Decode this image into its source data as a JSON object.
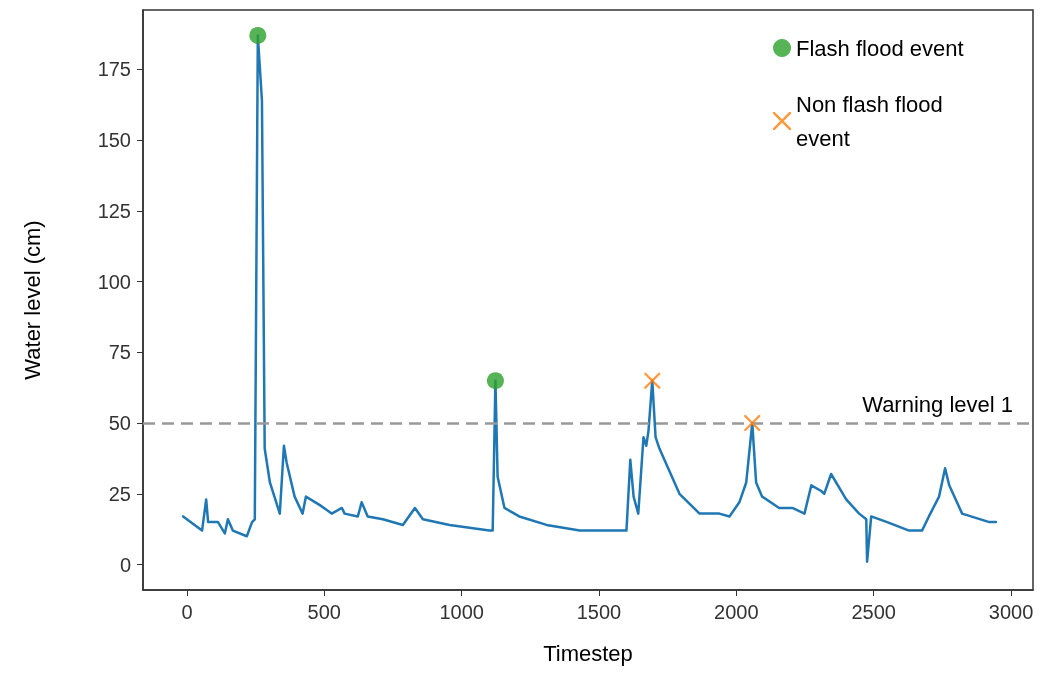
{
  "chart_data": {
    "type": "line",
    "xlabel": "Timestep",
    "ylabel": "Water level (cm)",
    "xlim": [
      -160,
      3080
    ],
    "ylim": [
      -9,
      196
    ],
    "xticks": [
      0,
      500,
      1000,
      1500,
      2000,
      2500,
      3000
    ],
    "yticks": [
      0,
      25,
      50,
      75,
      100,
      125,
      150,
      175
    ],
    "grid": false,
    "legend": "top right",
    "marker": "none",
    "line_style": "solid",
    "series": [
      {
        "color": "#1f77b4",
        "x": [
          -14,
          55,
          70,
          77,
          94,
          113,
          138,
          149,
          167,
          218,
          237,
          247,
          258,
          273,
          283,
          302,
          338,
          353,
          363,
          392,
          421,
          433,
          484,
          527,
          564,
          574,
          622,
          636,
          658,
          713,
          786,
          830,
          859,
          956,
          1101,
          1113,
          1123,
          1131,
          1156,
          1210,
          1309,
          1430,
          1549,
          1600,
          1614,
          1626,
          1643,
          1662,
          1672,
          1680,
          1694,
          1706,
          1720,
          1793,
          1866,
          1938,
          1975,
          2011,
          2036,
          2058,
          2072,
          2094,
          2156,
          2204,
          2248,
          2273,
          2309,
          2320,
          2345,
          2400,
          2447,
          2473,
          2476,
          2491,
          2549,
          2629,
          2676,
          2701,
          2738,
          2760,
          2775,
          2822,
          2921,
          2945
        ],
        "values": [
          17,
          12,
          23,
          15,
          15,
          15,
          11,
          16,
          12,
          10,
          15,
          16,
          187,
          164,
          41,
          29,
          18,
          42,
          36,
          24,
          18,
          24,
          21,
          18,
          20,
          18,
          17,
          22,
          17,
          16,
          14,
          20,
          16,
          14,
          12,
          12,
          65,
          31,
          20,
          17,
          14,
          12,
          12,
          12,
          37,
          24,
          18,
          45,
          42,
          47,
          65,
          45,
          41,
          25,
          18,
          18,
          17,
          22,
          29,
          50,
          29,
          24,
          20,
          20,
          18,
          28,
          26,
          25,
          32,
          23,
          18,
          16,
          1,
          17,
          15,
          12,
          12,
          17,
          24,
          34,
          28,
          18,
          15,
          15
        ]
      },
      {
        "type": "scatter",
        "name": "Flash flood event",
        "color": "#2ca02c",
        "marker": "circle",
        "x": [
          258,
          1123
        ],
        "values": [
          187,
          65
        ]
      },
      {
        "type": "scatter",
        "name": "Non flash flood event",
        "color": "#ff7f0e",
        "marker": "cross",
        "x": [
          1694,
          2058
        ],
        "values": [
          65,
          50
        ]
      }
    ],
    "ref_lines": [
      {
        "axis": "y",
        "value": 50,
        "label": "Warning level 1",
        "color": "#999999",
        "line_style": "dashed"
      }
    ]
  }
}
